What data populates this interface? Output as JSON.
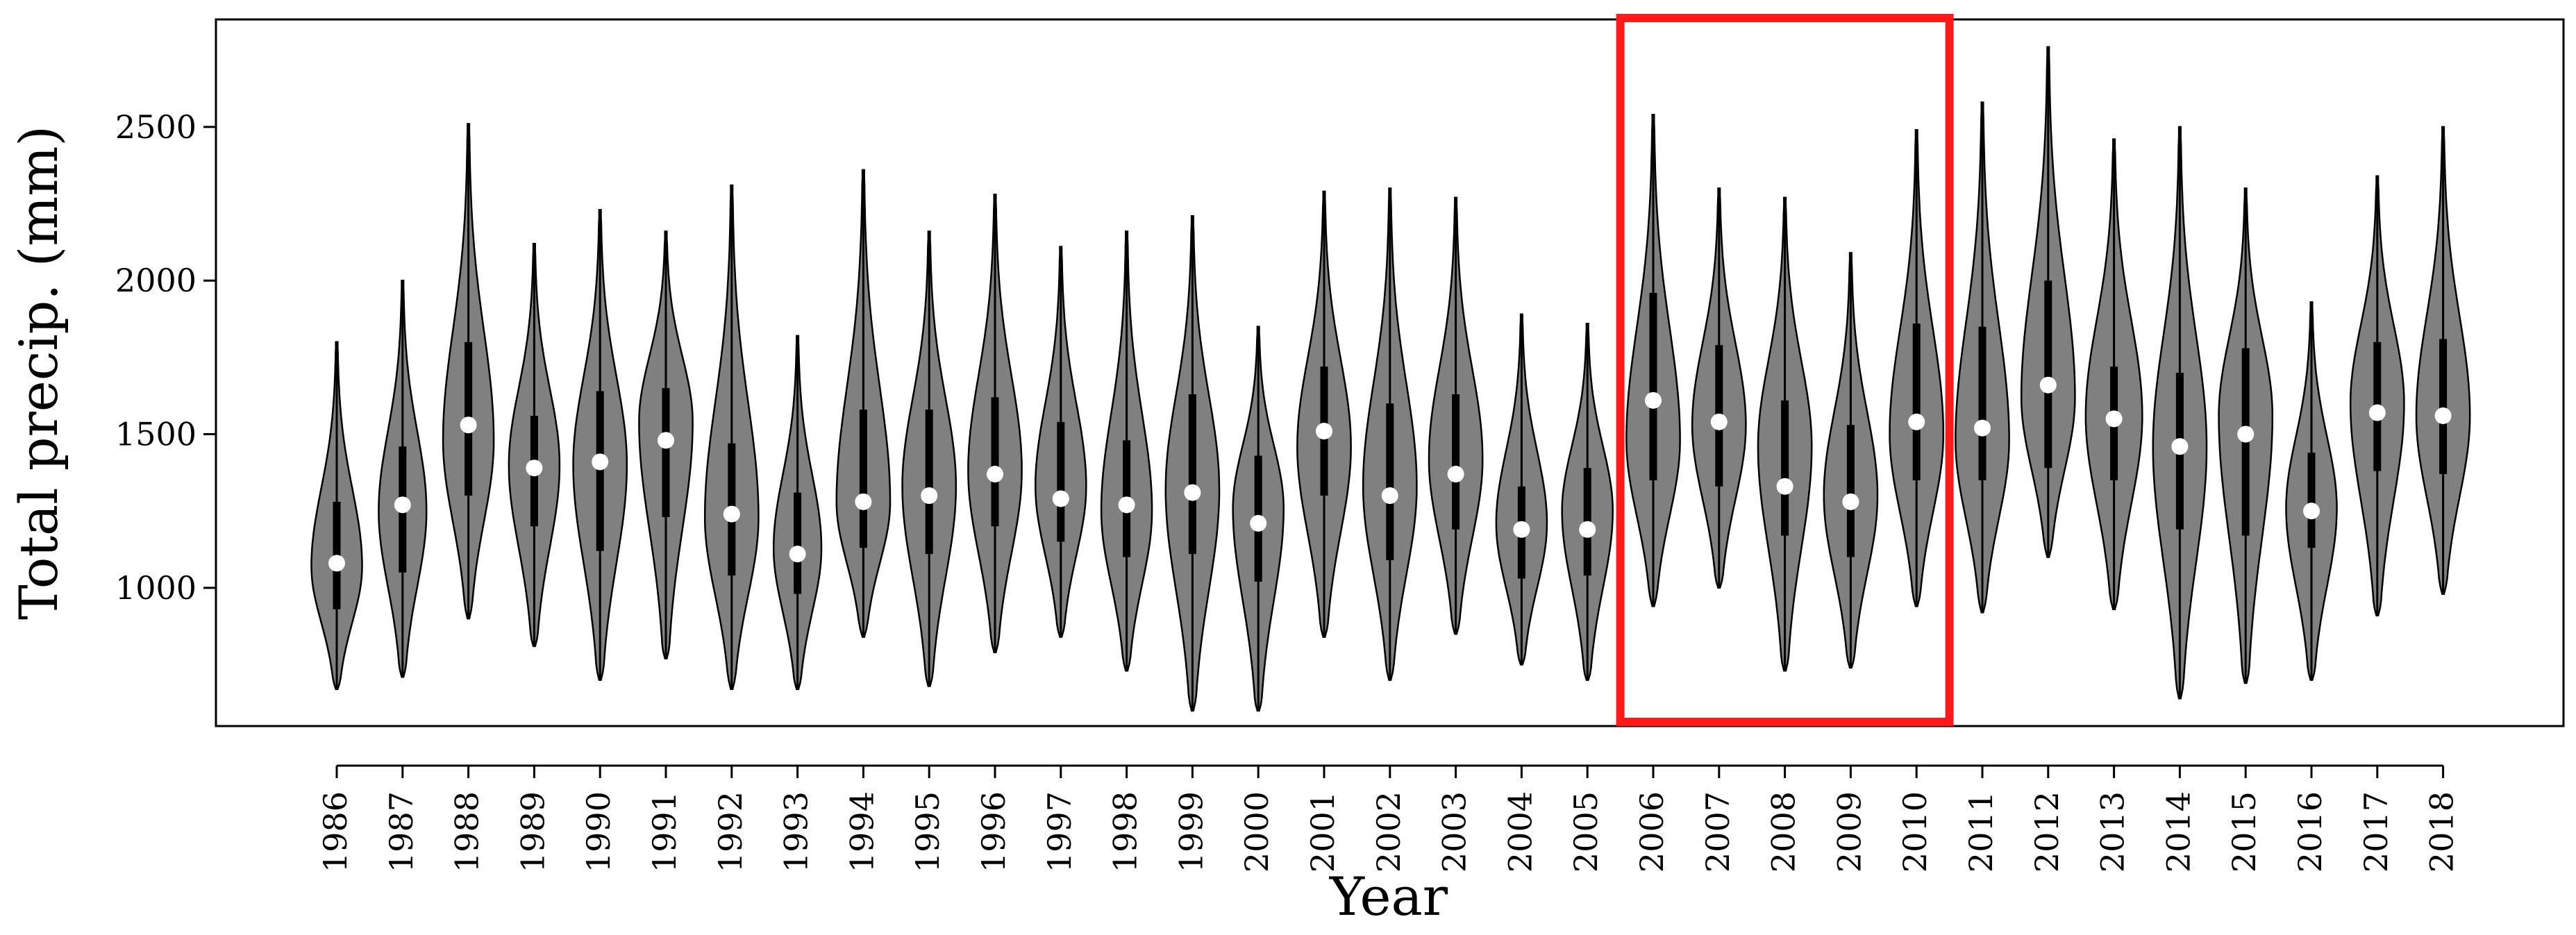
{
  "chart_data": {
    "type": "violin",
    "ylabel": "Total precip. (mm)",
    "xlabel": "Year",
    "ylim": [
      550,
      2850
    ],
    "yticks": [
      1000,
      1500,
      2000,
      2500
    ],
    "ytick_labels": [
      "1000",
      "1500",
      "2000",
      "2500"
    ],
    "grid": false,
    "violin_fill": "#808080",
    "median_marker_color": "#ffffff",
    "highlight_color": "#ff1a1a",
    "highlight_range": [
      "2006",
      "2010"
    ],
    "years": [
      {
        "year": "1986",
        "min": 670,
        "max": 1800,
        "q1": 930,
        "q3": 1280,
        "median": 1080,
        "mode": 1070,
        "mode_width": 0.85
      },
      {
        "year": "1987",
        "min": 710,
        "max": 2000,
        "q1": 1050,
        "q3": 1460,
        "median": 1270,
        "mode": 1250,
        "mode_width": 0.8
      },
      {
        "year": "1988",
        "min": 900,
        "max": 2510,
        "q1": 1300,
        "q3": 1800,
        "median": 1530,
        "mode": 1480,
        "mode_width": 0.85
      },
      {
        "year": "1989",
        "min": 810,
        "max": 2120,
        "q1": 1200,
        "q3": 1560,
        "median": 1390,
        "mode": 1400,
        "mode_width": 0.85
      },
      {
        "year": "1990",
        "min": 700,
        "max": 2230,
        "q1": 1120,
        "q3": 1640,
        "median": 1410,
        "mode": 1400,
        "mode_width": 0.9
      },
      {
        "year": "1991",
        "min": 770,
        "max": 2160,
        "q1": 1230,
        "q3": 1650,
        "median": 1480,
        "mode": 1540,
        "mode_width": 0.9
      },
      {
        "year": "1992",
        "min": 670,
        "max": 2310,
        "q1": 1040,
        "q3": 1470,
        "median": 1240,
        "mode": 1230,
        "mode_width": 0.9
      },
      {
        "year": "1993",
        "min": 670,
        "max": 1820,
        "q1": 980,
        "q3": 1310,
        "median": 1110,
        "mode": 1130,
        "mode_width": 0.8
      },
      {
        "year": "1994",
        "min": 840,
        "max": 2360,
        "q1": 1130,
        "q3": 1580,
        "median": 1280,
        "mode": 1280,
        "mode_width": 0.9
      },
      {
        "year": "1995",
        "min": 680,
        "max": 2160,
        "q1": 1110,
        "q3": 1580,
        "median": 1300,
        "mode": 1330,
        "mode_width": 0.9
      },
      {
        "year": "1996",
        "min": 790,
        "max": 2280,
        "q1": 1200,
        "q3": 1620,
        "median": 1370,
        "mode": 1380,
        "mode_width": 0.9
      },
      {
        "year": "1997",
        "min": 840,
        "max": 2110,
        "q1": 1150,
        "q3": 1540,
        "median": 1290,
        "mode": 1330,
        "mode_width": 0.85
      },
      {
        "year": "1998",
        "min": 730,
        "max": 2160,
        "q1": 1100,
        "q3": 1480,
        "median": 1270,
        "mode": 1250,
        "mode_width": 0.85
      },
      {
        "year": "1999",
        "min": 600,
        "max": 2210,
        "q1": 1110,
        "q3": 1630,
        "median": 1310,
        "mode": 1320,
        "mode_width": 0.9
      },
      {
        "year": "2000",
        "min": 600,
        "max": 1850,
        "q1": 1020,
        "q3": 1430,
        "median": 1210,
        "mode": 1260,
        "mode_width": 0.85
      },
      {
        "year": "2001",
        "min": 840,
        "max": 2290,
        "q1": 1300,
        "q3": 1720,
        "median": 1510,
        "mode": 1460,
        "mode_width": 0.9
      },
      {
        "year": "2002",
        "min": 700,
        "max": 2300,
        "q1": 1090,
        "q3": 1600,
        "median": 1300,
        "mode": 1330,
        "mode_width": 0.9
      },
      {
        "year": "2003",
        "min": 850,
        "max": 2270,
        "q1": 1190,
        "q3": 1630,
        "median": 1370,
        "mode": 1420,
        "mode_width": 0.9
      },
      {
        "year": "2004",
        "min": 750,
        "max": 1890,
        "q1": 1030,
        "q3": 1330,
        "median": 1190,
        "mode": 1210,
        "mode_width": 0.85
      },
      {
        "year": "2005",
        "min": 700,
        "max": 1860,
        "q1": 1040,
        "q3": 1390,
        "median": 1190,
        "mode": 1250,
        "mode_width": 0.85
      },
      {
        "year": "2006",
        "min": 940,
        "max": 2540,
        "q1": 1350,
        "q3": 1960,
        "median": 1610,
        "mode": 1480,
        "mode_width": 0.9
      },
      {
        "year": "2007",
        "min": 1000,
        "max": 2300,
        "q1": 1330,
        "q3": 1790,
        "median": 1540,
        "mode": 1530,
        "mode_width": 0.9
      },
      {
        "year": "2008",
        "min": 730,
        "max": 2270,
        "q1": 1170,
        "q3": 1610,
        "median": 1330,
        "mode": 1460,
        "mode_width": 0.9
      },
      {
        "year": "2009",
        "min": 740,
        "max": 2090,
        "q1": 1100,
        "q3": 1530,
        "median": 1280,
        "mode": 1300,
        "mode_width": 0.9
      },
      {
        "year": "2010",
        "min": 940,
        "max": 2490,
        "q1": 1350,
        "q3": 1860,
        "median": 1540,
        "mode": 1500,
        "mode_width": 0.9
      },
      {
        "year": "2011",
        "min": 920,
        "max": 2580,
        "q1": 1350,
        "q3": 1850,
        "median": 1520,
        "mode": 1480,
        "mode_width": 0.9
      },
      {
        "year": "2012",
        "min": 1100,
        "max": 2760,
        "q1": 1390,
        "q3": 2000,
        "median": 1660,
        "mode": 1620,
        "mode_width": 0.9
      },
      {
        "year": "2013",
        "min": 930,
        "max": 2460,
        "q1": 1350,
        "q3": 1720,
        "median": 1550,
        "mode": 1560,
        "mode_width": 0.95
      },
      {
        "year": "2014",
        "min": 640,
        "max": 2500,
        "q1": 1190,
        "q3": 1700,
        "median": 1460,
        "mode": 1460,
        "mode_width": 0.9
      },
      {
        "year": "2015",
        "min": 690,
        "max": 2300,
        "q1": 1170,
        "q3": 1780,
        "median": 1500,
        "mode": 1560,
        "mode_width": 0.9
      },
      {
        "year": "2016",
        "min": 700,
        "max": 1930,
        "q1": 1130,
        "q3": 1440,
        "median": 1250,
        "mode": 1260,
        "mode_width": 0.85
      },
      {
        "year": "2017",
        "min": 910,
        "max": 2340,
        "q1": 1380,
        "q3": 1800,
        "median": 1570,
        "mode": 1600,
        "mode_width": 0.9
      },
      {
        "year": "2018",
        "min": 980,
        "max": 2500,
        "q1": 1370,
        "q3": 1810,
        "median": 1560,
        "mode": 1560,
        "mode_width": 0.9
      }
    ]
  }
}
